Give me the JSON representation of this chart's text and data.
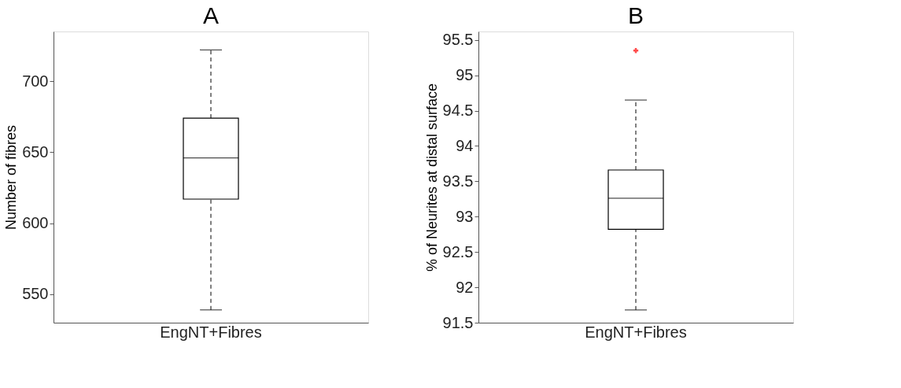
{
  "chart_data": [
    {
      "type": "box",
      "title": "A",
      "ylabel": "Number of fibres",
      "categories": [
        "EngNT+Fibres"
      ],
      "ylim": [
        530,
        735
      ],
      "yticks": [
        550,
        600,
        650,
        700
      ],
      "grid": false,
      "boxes": [
        {
          "low": 539,
          "q1": 617,
          "median": 646,
          "q3": 674,
          "high": 722
        }
      ]
    },
    {
      "type": "box",
      "title": "B",
      "ylabel": "% of Neurites at distal surface",
      "categories": [
        "EngNT+Fibres"
      ],
      "ylim": [
        91.5,
        95.62
      ],
      "yticks": [
        91.5,
        92,
        92.5,
        93,
        93.5,
        94,
        94.5,
        95,
        95.5
      ],
      "grid": false,
      "boxes": [
        {
          "low": 91.68,
          "q1": 92.82,
          "median": 93.26,
          "q3": 93.66,
          "high": 94.65,
          "outliers": [
            95.35
          ]
        }
      ]
    }
  ]
}
